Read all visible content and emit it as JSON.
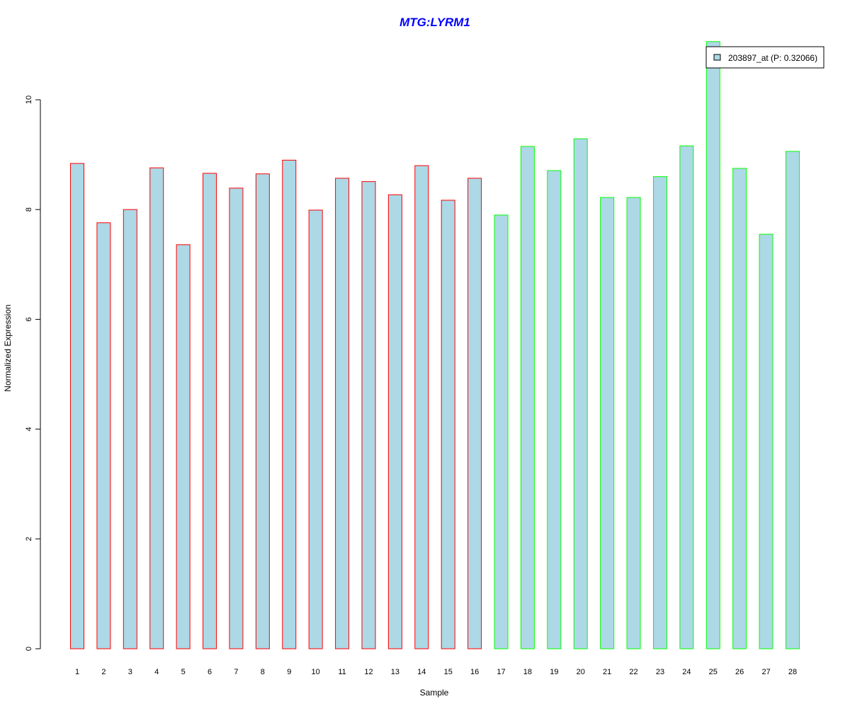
{
  "chart_data": {
    "type": "bar",
    "title": "MTG:LYRM1",
    "xlabel": "Sample",
    "ylabel": "Normalized Expression",
    "ylim": [
      0,
      11.1
    ],
    "yticks": [
      "0",
      "2",
      "4",
      "6",
      "8",
      "10"
    ],
    "categories": [
      "1",
      "2",
      "3",
      "4",
      "5",
      "6",
      "7",
      "8",
      "9",
      "10",
      "11",
      "12",
      "13",
      "14",
      "15",
      "16",
      "17",
      "18",
      "19",
      "20",
      "21",
      "22",
      "23",
      "24",
      "25",
      "26",
      "27",
      "28"
    ],
    "values": [
      8.84,
      7.76,
      8.0,
      8.76,
      7.36,
      8.66,
      8.39,
      8.65,
      8.9,
      7.99,
      8.57,
      8.51,
      8.27,
      8.8,
      8.17,
      8.57,
      7.9,
      9.15,
      8.71,
      9.29,
      8.22,
      8.22,
      8.6,
      9.16,
      11.06,
      8.75,
      7.55,
      9.06
    ],
    "groups": [
      "red",
      "red",
      "red",
      "red",
      "red",
      "red",
      "red",
      "red",
      "red",
      "red",
      "red",
      "red",
      "red",
      "red",
      "red",
      "red",
      "green",
      "green",
      "green",
      "green",
      "green",
      "green",
      "green",
      "green",
      "green",
      "green",
      "green",
      "green"
    ],
    "legend": {
      "label": "203897_at (P: 0.32066)",
      "placement": "top-right"
    },
    "grid": false
  },
  "colors": {
    "fill": "#add8e6",
    "red": "#ff0000",
    "green": "#00ff00",
    "title": "#0000ff"
  }
}
